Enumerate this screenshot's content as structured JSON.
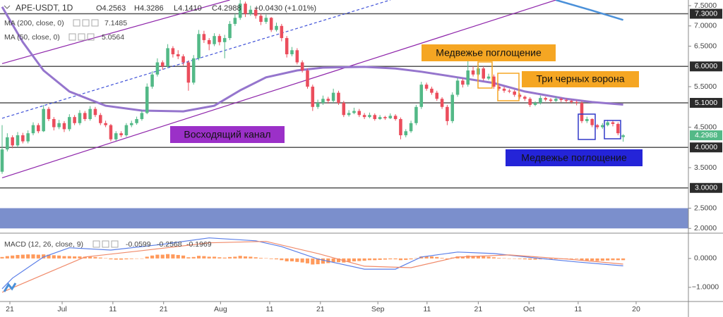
{
  "chart_data": [
    {
      "type": "candlestick",
      "title": "APE-USDT, 1D",
      "ohlc": [
        "O4.2563",
        "H4.3286",
        "L4.1410",
        "C4.2988",
        "+0.0430 (+1.01%)"
      ],
      "up_color": "#53b987",
      "down_color": "#eb4d5c",
      "xlim": [
        -0.41,
        132.6
      ],
      "ylim": [
        1.9,
        7.64
      ],
      "yticks": [
        {
          "value": 7.5,
          "label": "7.5000"
        },
        {
          "value": 7,
          "label": "7.0000"
        },
        {
          "value": 6.5,
          "label": "6.5000"
        },
        {
          "value": 5.5,
          "label": "5.5000"
        },
        {
          "value": 4.5,
          "label": "4.5000"
        },
        {
          "value": 3.5,
          "label": "3.5000"
        },
        {
          "value": 2.5,
          "label": "2.5000"
        },
        {
          "value": 2,
          "label": "2.0000"
        }
      ],
      "levels": [
        {
          "value": 7.3,
          "label": "7.3000"
        },
        {
          "value": 6,
          "label": "6.0000"
        },
        {
          "value": 5.1,
          "label": "5.1000"
        },
        {
          "value": 4,
          "label": "4.0000"
        },
        {
          "value": 3,
          "label": "3.0000"
        }
      ],
      "band": [
        2.0,
        2.5
      ],
      "band_color": "#7b8fcc",
      "last_price": {
        "value": 4.2988,
        "label": "4.2988"
      },
      "candles": [
        [
          3.4,
          4.55,
          3.35,
          3.95
        ],
        [
          3.95,
          4.35,
          3.9,
          4.25
        ],
        [
          4.25,
          4.3,
          3.98,
          4.05
        ],
        [
          4.05,
          4.38,
          4.0,
          4.3
        ],
        [
          4.3,
          4.36,
          4.1,
          4.15
        ],
        [
          4.15,
          4.42,
          4.1,
          4.35
        ],
        [
          4.35,
          4.62,
          4.3,
          4.55
        ],
        [
          4.55,
          4.6,
          4.35,
          4.4
        ],
        [
          4.4,
          5.05,
          4.38,
          4.95
        ],
        [
          4.95,
          5.0,
          4.65,
          4.7
        ],
        [
          4.7,
          4.75,
          4.42,
          4.5
        ],
        [
          4.5,
          4.68,
          4.45,
          4.6
        ],
        [
          4.6,
          4.65,
          4.38,
          4.45
        ],
        [
          4.45,
          4.82,
          4.4,
          4.75
        ],
        [
          4.75,
          4.8,
          4.55,
          4.6
        ],
        [
          4.6,
          4.92,
          4.55,
          4.85
        ],
        [
          4.85,
          4.9,
          4.65,
          4.7
        ],
        [
          4.7,
          5.02,
          4.66,
          4.95
        ],
        [
          4.95,
          5.0,
          4.75,
          4.8
        ],
        [
          4.8,
          4.85,
          4.55,
          4.6
        ],
        [
          4.6,
          4.66,
          4.5,
          4.55
        ],
        [
          4.55,
          4.58,
          4.15,
          4.2
        ],
        [
          4.2,
          4.4,
          4.16,
          4.35
        ],
        [
          4.35,
          4.4,
          4.25,
          4.3
        ],
        [
          4.3,
          4.6,
          4.26,
          4.55
        ],
        [
          4.55,
          4.66,
          4.5,
          4.6
        ],
        [
          4.6,
          4.76,
          4.56,
          4.7
        ],
        [
          4.7,
          4.92,
          4.66,
          4.85
        ],
        [
          4.85,
          5.58,
          4.82,
          5.5
        ],
        [
          5.5,
          5.88,
          5.45,
          5.8
        ],
        [
          5.8,
          6.2,
          5.75,
          6.1
        ],
        [
          6.1,
          6.15,
          5.92,
          6.0
        ],
        [
          6.0,
          6.55,
          5.96,
          6.45
        ],
        [
          6.45,
          6.5,
          6.22,
          6.3
        ],
        [
          6.3,
          6.4,
          6.18,
          6.25
        ],
        [
          6.25,
          6.3,
          6.02,
          6.1
        ],
        [
          6.1,
          6.15,
          5.4,
          5.6
        ],
        [
          5.6,
          6.28,
          5.55,
          6.2
        ],
        [
          6.2,
          6.9,
          6.15,
          6.8
        ],
        [
          6.8,
          6.88,
          6.58,
          6.65
        ],
        [
          6.65,
          6.7,
          6.4,
          6.55
        ],
        [
          6.55,
          6.82,
          6.5,
          6.75
        ],
        [
          6.75,
          6.8,
          6.52,
          6.6
        ],
        [
          6.6,
          6.78,
          6.2,
          6.7
        ],
        [
          6.7,
          7.12,
          6.65,
          7.05
        ],
        [
          7.05,
          7.3,
          7.0,
          7.2
        ],
        [
          7.2,
          7.64,
          7.15,
          7.55
        ],
        [
          7.55,
          7.6,
          7.22,
          7.3
        ],
        [
          7.3,
          7.5,
          7.25,
          7.4
        ],
        [
          7.4,
          7.45,
          7.18,
          7.25
        ],
        [
          7.25,
          7.3,
          7.02,
          7.1
        ],
        [
          7.1,
          7.28,
          7.05,
          7.2
        ],
        [
          7.2,
          7.22,
          6.85,
          6.9
        ],
        [
          6.9,
          7.08,
          6.86,
          7.0
        ],
        [
          7.0,
          7.05,
          6.62,
          6.7
        ],
        [
          6.7,
          6.75,
          6.22,
          6.3
        ],
        [
          6.3,
          6.48,
          6.25,
          6.4
        ],
        [
          6.4,
          6.45,
          6.05,
          6.1
        ],
        [
          6.1,
          6.15,
          5.85,
          5.9
        ],
        [
          5.9,
          5.95,
          5.45,
          5.5
        ],
        [
          5.5,
          5.55,
          4.9,
          5.0
        ],
        [
          5.0,
          5.18,
          4.95,
          5.1
        ],
        [
          5.1,
          5.28,
          5.05,
          5.2
        ],
        [
          5.2,
          5.25,
          5.08,
          5.15
        ],
        [
          5.15,
          5.45,
          5.1,
          5.35
        ],
        [
          5.35,
          5.4,
          5.05,
          5.1
        ],
        [
          5.1,
          5.15,
          4.75,
          4.8
        ],
        [
          4.8,
          4.92,
          4.76,
          4.85
        ],
        [
          4.85,
          4.98,
          4.82,
          4.9
        ],
        [
          4.9,
          4.95,
          4.75,
          4.8
        ],
        [
          4.8,
          4.85,
          4.7,
          4.75
        ],
        [
          4.75,
          4.86,
          4.72,
          4.8
        ],
        [
          4.8,
          4.84,
          4.66,
          4.7
        ],
        [
          4.7,
          4.8,
          4.68,
          4.75
        ],
        [
          4.75,
          4.78,
          4.68,
          4.72
        ],
        [
          4.72,
          4.84,
          4.7,
          4.78
        ],
        [
          4.78,
          4.82,
          4.66,
          4.7
        ],
        [
          4.7,
          4.74,
          4.2,
          4.3
        ],
        [
          4.3,
          4.45,
          4.25,
          4.4
        ],
        [
          4.4,
          4.66,
          4.36,
          4.6
        ],
        [
          4.6,
          5.05,
          4.55,
          5.0
        ],
        [
          5.0,
          5.62,
          4.95,
          5.55
        ],
        [
          5.55,
          5.6,
          5.4,
          5.45
        ],
        [
          5.45,
          5.5,
          5.3,
          5.35
        ],
        [
          5.35,
          5.4,
          5.15,
          5.2
        ],
        [
          5.2,
          5.24,
          4.95,
          5.0
        ],
        [
          5.0,
          5.05,
          4.55,
          4.65
        ],
        [
          4.65,
          5.36,
          4.6,
          5.3
        ],
        [
          5.3,
          5.72,
          5.25,
          5.65
        ],
        [
          5.65,
          5.7,
          5.48,
          5.55
        ],
        [
          5.55,
          6.2,
          5.5,
          5.9
        ],
        [
          5.9,
          6.0,
          5.75,
          5.8
        ],
        [
          5.8,
          6.05,
          5.76,
          5.95
        ],
        [
          5.95,
          6.0,
          5.65,
          5.7
        ],
        [
          5.7,
          5.82,
          5.66,
          5.75
        ],
        [
          5.75,
          5.8,
          5.45,
          5.5
        ],
        [
          5.5,
          5.55,
          5.4,
          5.45
        ],
        [
          5.45,
          5.5,
          5.35,
          5.4
        ],
        [
          5.4,
          5.44,
          5.34,
          5.38
        ],
        [
          5.38,
          5.42,
          5.25,
          5.3
        ],
        [
          5.3,
          5.34,
          5.2,
          5.25
        ],
        [
          5.25,
          5.28,
          5.15,
          5.2
        ],
        [
          5.2,
          5.24,
          5.0,
          5.05
        ],
        [
          5.05,
          5.14,
          5.02,
          5.1
        ],
        [
          5.1,
          5.28,
          5.06,
          5.22
        ],
        [
          5.22,
          5.25,
          5.14,
          5.18
        ],
        [
          5.18,
          5.22,
          5.1,
          5.15
        ],
        [
          5.15,
          5.26,
          5.12,
          5.2
        ],
        [
          5.2,
          5.23,
          5.12,
          5.17
        ],
        [
          5.17,
          5.21,
          5.1,
          5.15
        ],
        [
          5.15,
          5.18,
          5.08,
          5.12
        ],
        [
          5.12,
          5.16,
          5.04,
          5.1
        ],
        [
          5.1,
          5.14,
          4.6,
          4.65
        ],
        [
          4.65,
          4.76,
          4.6,
          4.7
        ],
        [
          4.7,
          4.72,
          4.5,
          4.55
        ],
        [
          4.55,
          4.58,
          4.45,
          4.5
        ],
        [
          4.5,
          4.6,
          4.46,
          4.55
        ],
        [
          4.55,
          4.68,
          4.52,
          4.62
        ],
        [
          4.62,
          4.66,
          4.52,
          4.58
        ],
        [
          4.58,
          4.62,
          4.3,
          4.35
        ],
        [
          4.2563,
          4.3286,
          4.141,
          4.2988
        ]
      ],
      "lines": [
        {
          "name": "MA (200, close, 0)",
          "legend_value": "7.1485",
          "color": "#4a90d9",
          "x": [
            107,
            114,
            120
          ],
          "values": [
            7.64,
            7.38,
            7.1485
          ]
        },
        {
          "name": "MA (50, close, 0)",
          "legend_value": "5.0564",
          "color": "#9575cd",
          "x": [
            0,
            4,
            8,
            13,
            20,
            27,
            35,
            41,
            46,
            51,
            57,
            62,
            70,
            76,
            81,
            88,
            95,
            101,
            109,
            114,
            120
          ],
          "values": [
            7.47,
            6.6,
            5.9,
            5.38,
            5.03,
            4.91,
            4.89,
            5.03,
            5.41,
            5.73,
            5.9,
            5.97,
            5.99,
            5.95,
            5.87,
            5.73,
            5.59,
            5.38,
            5.2,
            5.12,
            5.0564
          ]
        }
      ],
      "trendlines": [
        {
          "color": "#8e24aa",
          "dash": false,
          "x": [
            0,
            44
          ],
          "values": [
            6.07,
            7.64
          ]
        },
        {
          "color": "#8e24aa",
          "dash": false,
          "x": [
            0,
            107
          ],
          "values": [
            3.25,
            7.64
          ]
        },
        {
          "color": "#3f51d8",
          "dash": true,
          "x": [
            0,
            75
          ],
          "values": [
            4.72,
            7.64
          ]
        }
      ],
      "annotations": [
        "Медвежье поглощение",
        "Три черных ворона",
        "Восходящий канал",
        "Медвежье поглощение"
      ]
    },
    {
      "type": "macd",
      "title": "MACD (12, 26, close, 9)",
      "xlim": [
        -0.41,
        132.6
      ],
      "ylim": [
        -1.49,
        0.85
      ],
      "yticks": [
        {
          "value": 0,
          "label": "0.0000"
        },
        {
          "value": -1,
          "label": "−1.0000"
        }
      ],
      "xticks": [
        {
          "value": 1.5,
          "label": "21"
        },
        {
          "value": 11.6,
          "label": "Jul"
        },
        {
          "value": 21.4,
          "label": "11"
        },
        {
          "value": 31.2,
          "label": "21"
        },
        {
          "value": 42.2,
          "label": "Aug"
        },
        {
          "value": 51.7,
          "label": "11"
        },
        {
          "value": 61.5,
          "label": "21"
        },
        {
          "value": 72.6,
          "label": "Sep"
        },
        {
          "value": 82.1,
          "label": "11"
        },
        {
          "value": 92,
          "label": "21"
        },
        {
          "value": 101.8,
          "label": "Oct"
        },
        {
          "value": 111.3,
          "label": "11"
        },
        {
          "value": 122.5,
          "label": "20"
        }
      ],
      "histogram": {
        "legend_value": "-0.0599",
        "color": "#ff9a5c",
        "values": [
          0.05,
          0.08,
          0.1,
          0.12,
          0.13,
          0.14,
          0.14,
          0.13,
          0.14,
          0.13,
          0.11,
          0.1,
          0.08,
          0.08,
          0.07,
          0.07,
          0.06,
          0.06,
          0.05,
          0.03,
          0.01,
          -0.03,
          -0.04,
          -0.04,
          -0.03,
          -0.02,
          -0.01,
          0,
          0.06,
          0.1,
          0.13,
          0.13,
          0.15,
          0.14,
          0.12,
          0.1,
          0.04,
          0.05,
          0.09,
          0.08,
          0.06,
          0.06,
          0.04,
          0.03,
          0.05,
          0.06,
          0.09,
          0.07,
          0.06,
          0.04,
          0.02,
          0.01,
          -0.02,
          -0.03,
          -0.06,
          -0.1,
          -0.1,
          -0.12,
          -0.14,
          -0.17,
          -0.21,
          -0.2,
          -0.18,
          -0.16,
          -0.13,
          -0.13,
          -0.14,
          -0.12,
          -0.1,
          -0.09,
          -0.08,
          -0.06,
          -0.06,
          -0.05,
          -0.04,
          -0.03,
          -0.03,
          -0.06,
          -0.05,
          -0.03,
          0.01,
          0.07,
          0.08,
          0.07,
          0.05,
          0.02,
          -0.03,
          0.03,
          0.07,
          0.07,
          0.1,
          0.09,
          0.09,
          0.07,
          0.06,
          0.04,
          0.02,
          0.01,
          0,
          -0.01,
          -0.02,
          -0.03,
          -0.04,
          -0.04,
          -0.03,
          -0.03,
          -0.03,
          -0.02,
          -0.02,
          -0.02,
          -0.02,
          -0.02,
          -0.06,
          -0.07,
          -0.08,
          -0.09,
          -0.08,
          -0.07,
          -0.06,
          -0.06,
          -0.0599
        ]
      },
      "series": [
        {
          "legend_value": "-0.2568",
          "color": "#5b7fe8",
          "x": [
            0,
            2,
            8,
            13,
            21,
            31,
            40,
            49,
            54,
            61,
            70,
            76,
            81,
            88,
            95,
            103,
            111,
            120
          ],
          "values": [
            -1.05,
            -0.68,
            0.05,
            0.37,
            0.29,
            0.49,
            0.71,
            0.61,
            0.41,
            -0.02,
            -0.37,
            -0.37,
            0.05,
            0.22,
            0.17,
            0.02,
            -0.12,
            -0.2568
          ]
        },
        {
          "legend_value": "-0.1969",
          "color": "#f08a6a",
          "x": [
            0,
            8,
            16,
            27,
            40,
            51,
            61,
            70,
            79,
            88,
            98,
            109,
            120
          ],
          "values": [
            -1.17,
            -0.56,
            0.05,
            0.27,
            0.54,
            0.59,
            0.17,
            -0.27,
            -0.32,
            0.05,
            0.12,
            -0.02,
            -0.1969
          ]
        }
      ]
    }
  ]
}
